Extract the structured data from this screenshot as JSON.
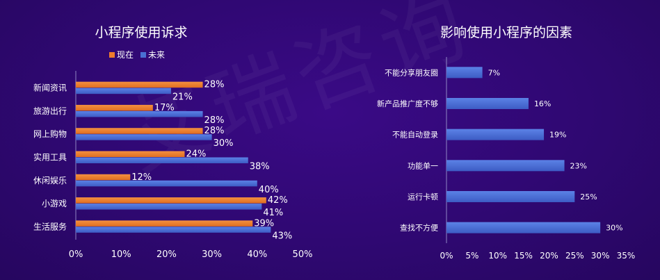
{
  "chart_data": [
    {
      "type": "bar",
      "orientation": "horizontal",
      "title": "小程序使用诉求",
      "categories": [
        "新闻资讯",
        "旅游出行",
        "网上购物",
        "实用工具",
        "休闲娱乐",
        "小游戏",
        "生活服务"
      ],
      "series": [
        {
          "name": "现在",
          "color": "#ee7d2d",
          "values": [
            28,
            17,
            28,
            24,
            12,
            42,
            39
          ],
          "labels": [
            "28%",
            "17%",
            "28%",
            "24%",
            "12%",
            "42%",
            "39%"
          ]
        },
        {
          "name": "未来",
          "color": "#4a6fd3",
          "values": [
            21,
            28,
            30,
            38,
            40,
            41,
            43
          ],
          "labels": [
            "21%",
            "28%",
            "30%",
            "38%",
            "40%",
            "41%",
            "43%"
          ]
        }
      ],
      "xlim": [
        0,
        50
      ],
      "ticks": [
        "0%",
        "10%",
        "20%",
        "30%",
        "40%",
        "50%"
      ],
      "legend_position": "top",
      "grid": false
    },
    {
      "type": "bar",
      "orientation": "horizontal",
      "title": "影响使用小程序的因素",
      "categories": [
        "不能分享朋友圈",
        "新产品推广度不够",
        "不能自动登录",
        "功能单一",
        "运行卡顿",
        "查找不方便"
      ],
      "series": [
        {
          "color": "#4a6fd3",
          "values": [
            7,
            16,
            19,
            23,
            25,
            30
          ],
          "labels": [
            "7%",
            "16%",
            "19%",
            "23%",
            "25%",
            "30%"
          ]
        }
      ],
      "xlim": [
        0,
        35
      ],
      "ticks": [
        "0%",
        "5%",
        "10%",
        "15%",
        "20%",
        "25%",
        "30%",
        "35%"
      ],
      "grid": false
    }
  ],
  "watermark": "艾瑞咨询"
}
